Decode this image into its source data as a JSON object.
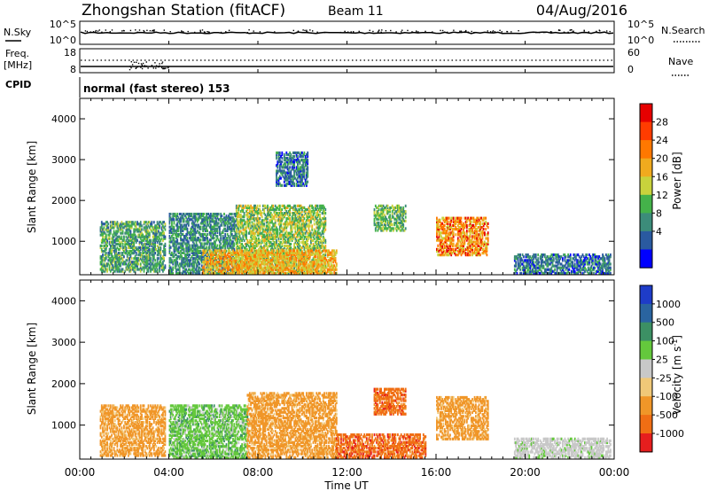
{
  "header": {
    "station": "Zhongshan Station (fitACF)",
    "beam": "Beam 11",
    "date": "04/Aug/2016"
  },
  "panel_nsky": {
    "left_label": "N.Sky",
    "left_ticks": [
      "10^5",
      "10^0"
    ],
    "right_label": "N.Search",
    "right_ticks": [
      "10^5",
      "10^0"
    ]
  },
  "panel_freq": {
    "left_label_line1": "Freq.",
    "left_label_line2": "[MHz]",
    "left_ticks": [
      "18",
      "8"
    ],
    "right_label": "Nave",
    "right_ticks": [
      "60",
      "0"
    ]
  },
  "panel_cpid": {
    "label": "CPID",
    "text": "normal (fast stereo) 153"
  },
  "time_axis": {
    "ticks": [
      "00:00",
      "04:00",
      "08:00",
      "12:00",
      "16:00",
      "20:00",
      "00:00"
    ],
    "label": "Time UT"
  },
  "chart_data": [
    {
      "type": "heatmap",
      "title": "Power",
      "ylabel": "Slant Range [km]",
      "xlabel": "Time UT",
      "ylim": [
        180,
        4500
      ],
      "xlim_hours": [
        0,
        24
      ],
      "yticks": [
        "1000",
        "2000",
        "3000",
        "4000"
      ],
      "colorbar": {
        "label": "Power [dB]",
        "ticks": [
          "4",
          "8",
          "12",
          "16",
          "20",
          "24",
          "28"
        ],
        "colors": [
          "#0000ff",
          "#2a5aa0",
          "#3c8c7a",
          "#44b24a",
          "#c8d23c",
          "#f0aa1e",
          "#ff7800",
          "#ff3c00",
          "#e60000"
        ]
      },
      "echo_regions": [
        {
          "t0": 0.9,
          "t1": 3.8,
          "r0": 300,
          "r1": 1500,
          "value": 12
        },
        {
          "t0": 4.0,
          "t1": 7.0,
          "r0": 250,
          "r1": 1700,
          "value": 10
        },
        {
          "t0": 7.0,
          "t1": 11.0,
          "r0": 250,
          "r1": 1900,
          "value": 16
        },
        {
          "t0": 5.5,
          "t1": 11.5,
          "r0": 250,
          "r1": 800,
          "value": 22
        },
        {
          "t0": 8.8,
          "t1": 10.2,
          "r0": 2400,
          "r1": 3200,
          "value": 8
        },
        {
          "t0": 13.2,
          "t1": 14.6,
          "r0": 1300,
          "r1": 1900,
          "value": 14
        },
        {
          "t0": 16.0,
          "t1": 18.3,
          "r0": 700,
          "r1": 1600,
          "value": 24
        },
        {
          "t0": 19.5,
          "t1": 23.8,
          "r0": 250,
          "r1": 700,
          "value": 8
        }
      ]
    },
    {
      "type": "heatmap",
      "title": "Velocity",
      "ylabel": "Slant Range [km]",
      "xlabel": "Time UT",
      "ylim": [
        180,
        4500
      ],
      "xlim_hours": [
        0,
        24
      ],
      "yticks": [
        "1000",
        "2000",
        "3000",
        "4000"
      ],
      "colorbar": {
        "label": "Velocity [m s",
        "label_sup": "-1",
        "label_end": "]",
        "ticks": [
          "1000",
          "500",
          "100",
          "25",
          "-25",
          "-100",
          "-500",
          "-1000"
        ],
        "colors": [
          "#1e3cc8",
          "#2a64a0",
          "#3c9064",
          "#64c83c",
          "#c8c8c8",
          "#f0c878",
          "#f09628",
          "#f06e14",
          "#e61e1e"
        ]
      },
      "echo_regions": [
        {
          "t0": 0.9,
          "t1": 3.8,
          "r0": 300,
          "r1": 1500,
          "value": -100
        },
        {
          "t0": 4.0,
          "t1": 7.5,
          "r0": 250,
          "r1": 1500,
          "value": 100
        },
        {
          "t0": 7.5,
          "t1": 11.5,
          "r0": 250,
          "r1": 1800,
          "value": -100
        },
        {
          "t0": 11.5,
          "t1": 15.5,
          "r0": 250,
          "r1": 800,
          "value": -500
        },
        {
          "t0": 13.2,
          "t1": 14.6,
          "r0": 1300,
          "r1": 1900,
          "value": -500
        },
        {
          "t0": 16.0,
          "t1": 18.3,
          "r0": 700,
          "r1": 1700,
          "value": -100
        },
        {
          "t0": 19.5,
          "t1": 23.8,
          "r0": 250,
          "r1": 700,
          "value": 25
        }
      ]
    }
  ]
}
